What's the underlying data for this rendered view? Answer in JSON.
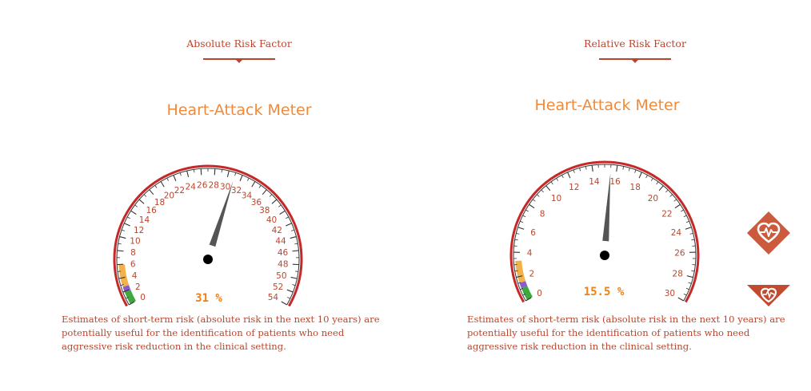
{
  "panels": [
    {
      "tab_title": "Absolute Risk Factor",
      "meter_title": "Heart-Attack Meter",
      "gauge": {
        "min": 0,
        "max": 54,
        "major_step": 2,
        "minor_step": 1,
        "value": 31
      },
      "readout": "31 %",
      "description": "Estimates of short-term risk (absolute risk in the next 10 years) are potentially useful for the identification of patients who need aggressive risk reduction in the clinical setting."
    },
    {
      "tab_title": "Relative Risk Factor",
      "meter_title": "Heart-Attack Meter",
      "gauge": {
        "min": 0,
        "max": 30,
        "major_step": 2,
        "minor_step": 0.5,
        "value": 15.5
      },
      "readout": "15.5 %",
      "description": "Estimates of short-term risk (absolute risk in the next 10 years) are potentially useful for the identification of patients who need aggressive risk reduction in the clinical setting."
    }
  ],
  "side_buttons": [
    {
      "icon": "heart-pulse-icon"
    },
    {
      "icon": "heart-pulse-icon"
    }
  ],
  "colors": {
    "accent": "#b8462f",
    "meter_title": "#f08a3a",
    "readout": "#f07f16",
    "rim": "#c62828",
    "needle": "#555555",
    "band_green": "#3caa3c",
    "band_purple": "#8a5ad0",
    "band_orange": "#f2b24b"
  }
}
